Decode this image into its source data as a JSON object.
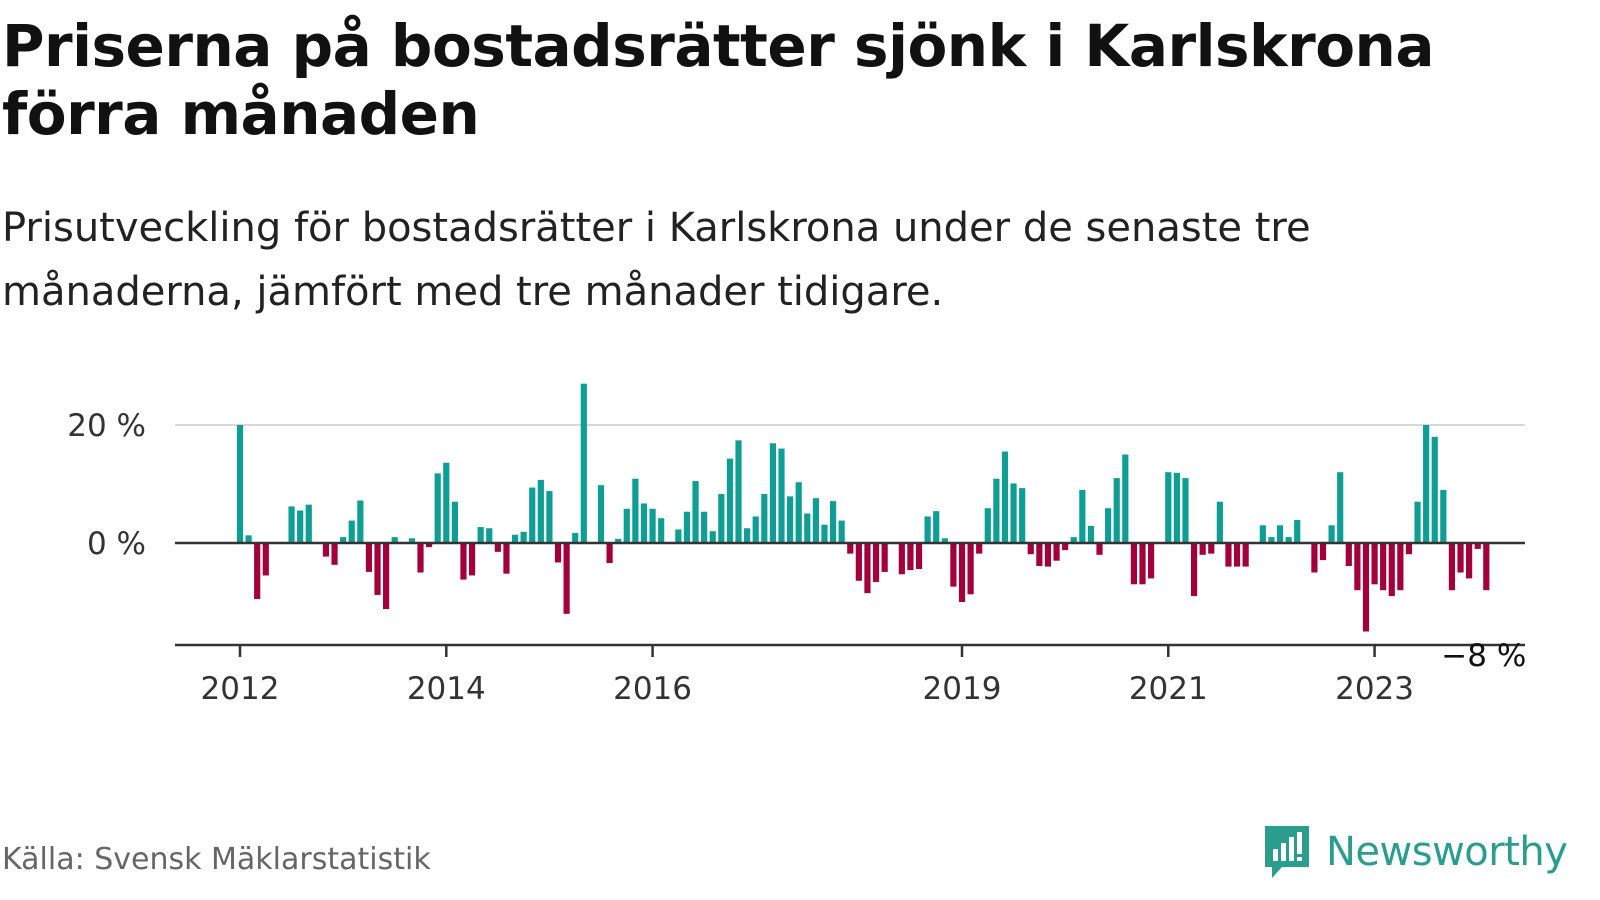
{
  "header": {
    "title": "Priserna på bostadsrätter sjönk i Karlskrona förra månaden",
    "subtitle": "Prisutveckling för bostadsrätter i Karlskrona under de senaste tre månaderna, jämfört med tre månader tidigare."
  },
  "footer": {
    "source": "Källa: Svensk Mäklarstatistik",
    "brand": "Newsworthy",
    "brand_icon": "bar-chart-speech-bubble-icon"
  },
  "colors": {
    "positive": "#0e9e94",
    "negative": "#a3003a",
    "gridline": "#d9d9d9",
    "axis": "#333333",
    "brand": "#2a9d8f"
  },
  "chart_data": {
    "type": "bar",
    "y_unit": "%",
    "ylim": [
      -17,
      27
    ],
    "yticks": [
      {
        "value": 0,
        "label": "0 %"
      },
      {
        "value": 20,
        "label": "20 %"
      }
    ],
    "grid": true,
    "x_start": "2012-01",
    "x_end": "2024-02",
    "xticks": [
      {
        "date": "2012-01",
        "label": "2012"
      },
      {
        "date": "2014-01",
        "label": "2014"
      },
      {
        "date": "2016-01",
        "label": "2016"
      },
      {
        "date": "2019-01",
        "label": "2019"
      },
      {
        "date": "2021-01",
        "label": "2021"
      },
      {
        "date": "2023-01",
        "label": "2023"
      }
    ],
    "start_month": "2012-01",
    "values": [
      20.0,
      1.3,
      -9.5,
      -5.5,
      0,
      0,
      6.2,
      5.5,
      6.5,
      0,
      -2.3,
      -3.7,
      1.0,
      3.8,
      7.2,
      -4.9,
      -8.8,
      -11.2,
      1.0,
      0,
      0.8,
      -5.0,
      -0.7,
      11.8,
      13.6,
      7.0,
      -6.2,
      -5.5,
      2.7,
      2.5,
      -1.5,
      -5.2,
      1.4,
      1.9,
      9.4,
      10.7,
      8.8,
      -3.3,
      -12.0,
      1.7,
      27.0,
      0,
      9.8,
      -3.4,
      0.7,
      5.8,
      10.9,
      6.7,
      5.8,
      4.2,
      0,
      2.3,
      5.3,
      10.5,
      5.3,
      2.0,
      8.3,
      14.3,
      17.4,
      2.5,
      4.5,
      8.3,
      16.9,
      16.0,
      7.9,
      10.3,
      5.0,
      7.6,
      3.1,
      7.1,
      3.8,
      -1.8,
      -6.4,
      -8.5,
      -6.6,
      -4.9,
      0,
      -5.3,
      -4.6,
      -4.4,
      4.5,
      5.4,
      0.8,
      -7.4,
      -10.0,
      -8.7,
      -1.8,
      5.9,
      10.9,
      15.5,
      10.1,
      9.3,
      -1.9,
      -3.9,
      -4.0,
      -3.0,
      -1.2,
      1.0,
      9.0,
      2.9,
      -2.0,
      5.9,
      11.0,
      15.0,
      -7.0,
      -7.0,
      -6.0,
      0,
      12.0,
      11.9,
      11.0,
      -9.0,
      -2.0,
      -1.8,
      7.0,
      -4.0,
      -4.0,
      -4.0,
      0,
      3.0,
      1.0,
      3.0,
      1.0,
      3.9,
      0,
      -5.0,
      -2.9,
      3.0,
      12.0,
      -3.9,
      -8.0,
      -15.0,
      -7.0,
      -8.0,
      -9.0,
      -8.0,
      -1.9,
      7.0,
      20.0,
      18.0,
      9.0,
      -8.0,
      -5.0,
      -6.0,
      -1.0,
      -8.0
    ],
    "annotation": {
      "label": "−8 %"
    }
  }
}
